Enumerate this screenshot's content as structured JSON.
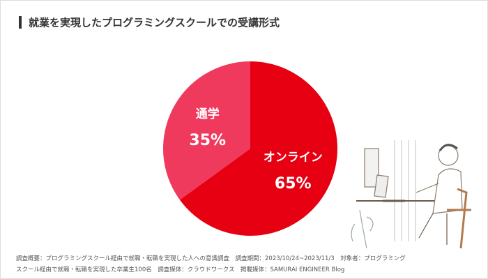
{
  "chart_data": {
    "type": "pie",
    "title": "就業を実現したプログラミングスクールでの受講形式",
    "categories": [
      "オンライン",
      "通学"
    ],
    "values": [
      65,
      35
    ],
    "value_labels": [
      "65%",
      "35%"
    ],
    "colors": [
      "#e60012",
      "#ef3a5d"
    ],
    "footnote": "調査概要：プログラミングスクール経由で就職・転職を実現した人への意識調査　調査期間：2023/10/24~2023/11/3　対象者：プログラミングスクール経由で就職・転職を実現した卒業生100名　調査媒体：クラウドワークス　掲載媒体：SAMURAI ENGINEER Blog"
  }
}
